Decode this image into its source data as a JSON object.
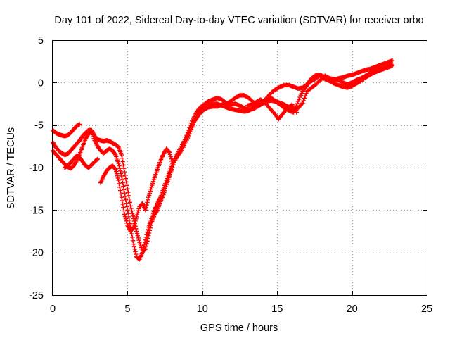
{
  "chart_data": {
    "type": "scatter",
    "title": "Day 101 of 2022, Sidereal Day-to-day VTEC variation (SDTVAR) for receiver orbo",
    "xlabel": "GPS time / hours",
    "ylabel": "SDTVAR / TECUs",
    "xlim": [
      0,
      25
    ],
    "ylim": [
      -25,
      5
    ],
    "xticks": [
      0,
      5,
      10,
      15,
      20,
      25
    ],
    "yticks": [
      5,
      0,
      -5,
      -10,
      -15,
      -20,
      -25
    ],
    "xtick_labels": [
      "0",
      "5",
      "10",
      "15",
      "20",
      "25"
    ],
    "ytick_labels": [
      "5",
      "0",
      "-5",
      "-10",
      "-15",
      "-20",
      "-25"
    ],
    "grid": true,
    "legend": "none",
    "marker": "+",
    "color": "#ff0000",
    "series": [
      {
        "x": [
          0.0,
          0.2,
          0.4,
          0.6,
          0.8,
          1.0,
          1.2,
          1.4,
          1.6,
          1.8,
          2.0,
          2.2,
          2.4,
          2.6,
          2.8,
          3.0,
          3.2,
          3.4,
          3.6,
          3.8,
          4.0,
          4.2,
          4.4,
          4.6,
          4.8,
          5.0,
          5.2,
          5.4,
          5.6,
          5.8,
          6.0,
          6.2,
          6.4,
          6.6,
          6.8,
          7.0,
          7.2,
          7.4,
          7.6,
          7.8,
          8.0,
          8.3,
          8.6,
          8.9,
          9.2,
          9.5,
          9.8,
          10.1,
          10.4,
          10.7,
          11.0,
          11.3,
          11.6,
          11.9,
          12.2,
          12.5,
          12.8,
          13.1,
          13.4,
          13.7,
          14.0,
          14.3,
          14.6,
          14.9,
          15.2,
          15.5,
          15.8,
          16.1,
          16.4,
          16.7,
          17.0,
          17.3,
          17.6,
          17.9,
          18.2,
          18.5,
          18.8,
          19.1,
          19.4,
          19.7,
          20.0,
          20.3,
          20.6,
          20.9,
          21.2,
          21.5,
          21.8,
          22.1,
          22.4,
          22.7
        ],
        "y": [
          -7.0,
          -7.6,
          -8.0,
          -8.3,
          -8.5,
          -8.4,
          -8.0,
          -7.6,
          -7.2,
          -6.8,
          -6.3,
          -5.9,
          -5.6,
          -5.6,
          -6.3,
          -6.7,
          -6.8,
          -6.9,
          -6.8,
          -6.9,
          -7.1,
          -7.3,
          -7.6,
          -8.5,
          -10.5,
          -12.5,
          -14.5,
          -16.0,
          -17.5,
          -18.8,
          -19.8,
          -19.6,
          -18.0,
          -16.5,
          -15.6,
          -15.0,
          -14.0,
          -13.2,
          -12.0,
          -11.0,
          -10.0,
          -8.5,
          -7.5,
          -6.5,
          -5.0,
          -3.8,
          -3.0,
          -2.6,
          -2.2,
          -2.0,
          -1.8,
          -2.0,
          -2.4,
          -2.6,
          -2.5,
          -2.7,
          -3.0,
          -3.2,
          -3.1,
          -2.8,
          -2.5,
          -2.2,
          -2.1,
          -2.2,
          -2.4,
          -2.6,
          -2.9,
          -3.2,
          -3.0,
          -2.4,
          -1.0,
          -0.6,
          -0.2,
          0.3,
          0.8,
          0.5,
          0.4,
          0.3,
          0.0,
          -0.2,
          0.0,
          0.3,
          0.5,
          0.8,
          1.1,
          1.3,
          1.5,
          1.7,
          1.9,
          2.1
        ]
      },
      {
        "x": [
          0.0,
          0.2,
          0.4,
          0.6,
          0.8,
          1.0,
          1.2,
          1.4,
          1.6,
          1.8,
          2.0,
          2.2,
          2.4,
          2.6,
          2.8,
          3.0,
          3.2,
          3.4,
          3.6,
          3.8,
          4.0,
          4.2,
          4.4,
          4.6,
          4.8,
          5.0,
          5.2,
          5.4,
          5.6,
          5.8,
          6.0,
          6.2,
          6.4,
          6.6,
          6.8,
          7.0,
          7.2,
          7.4,
          7.6,
          7.8,
          8.0,
          8.3,
          8.6,
          8.9,
          9.2,
          9.5,
          9.8,
          10.1,
          10.4,
          10.7,
          11.0,
          11.3,
          11.6,
          11.9,
          12.2,
          12.5,
          12.8,
          13.1,
          13.4,
          13.7,
          14.0,
          14.3,
          14.6,
          14.9,
          15.2,
          15.5,
          15.8,
          16.1,
          16.4,
          16.7,
          17.0,
          17.3,
          17.6,
          17.9,
          18.2,
          18.5,
          18.8,
          19.1,
          19.4,
          19.7,
          20.0,
          20.3,
          20.6,
          20.9,
          21.2,
          21.5,
          21.8,
          22.1,
          22.4,
          22.7
        ],
        "y": [
          -8.0,
          -8.4,
          -8.8,
          -9.2,
          -9.6,
          -9.9,
          -10.1,
          -9.8,
          -9.2,
          -8.4,
          -7.5,
          -6.6,
          -6.0,
          -5.7,
          -6.8,
          -7.5,
          -8.0,
          -8.3,
          -8.0,
          -7.8,
          -8.0,
          -8.5,
          -9.5,
          -11.0,
          -13.0,
          -15.0,
          -17.0,
          -19.0,
          -20.5,
          -20.8,
          -20.0,
          -18.5,
          -17.0,
          -16.0,
          -15.0,
          -14.2,
          -13.5,
          -12.5,
          -11.5,
          -10.5,
          -9.5,
          -8.8,
          -8.0,
          -7.0,
          -5.8,
          -4.4,
          -3.4,
          -3.0,
          -2.7,
          -2.5,
          -2.5,
          -2.7,
          -2.9,
          -3.1,
          -3.2,
          -3.3,
          -3.4,
          -3.3,
          -3.0,
          -2.6,
          -2.3,
          -2.0,
          -1.8,
          -2.2,
          -2.6,
          -3.0,
          -3.3,
          -3.5,
          -2.2,
          -1.0,
          -0.3,
          0.2,
          0.5,
          0.9,
          0.6,
          0.2,
          -0.1,
          -0.3,
          -0.5,
          -0.6,
          -0.4,
          -0.1,
          0.2,
          0.6,
          0.9,
          1.2,
          1.4,
          1.6,
          1.8,
          2.0
        ]
      },
      {
        "x": [
          0.0,
          0.2,
          0.4,
          0.6,
          0.8,
          1.0,
          1.2,
          1.4,
          1.6,
          1.8,
          3.2,
          3.4,
          3.6,
          3.8,
          4.0,
          4.2,
          4.4,
          4.6,
          4.8,
          5.0,
          5.2,
          5.4,
          5.6,
          5.8,
          6.0,
          6.2,
          6.4,
          6.6,
          6.8,
          7.0,
          7.2,
          7.4,
          7.6,
          7.8,
          8.0,
          8.3,
          8.6,
          8.9,
          9.2,
          9.5,
          9.8,
          10.1,
          10.4,
          10.7,
          11.0,
          11.3,
          11.6,
          11.9,
          12.2,
          12.5,
          12.8,
          13.1,
          13.4,
          13.7,
          14.0,
          14.3,
          14.6,
          14.9,
          15.2,
          15.5,
          15.8,
          16.1,
          16.4,
          16.7,
          17.0,
          17.3,
          17.6,
          17.9,
          18.2,
          18.5,
          18.8,
          19.1,
          19.4,
          19.7,
          20.0,
          20.3,
          20.6,
          20.9,
          21.2,
          21.5,
          21.8,
          22.1,
          22.4,
          22.7
        ],
        "y": [
          -5.6,
          -5.9,
          -6.1,
          -6.2,
          -6.3,
          -6.2,
          -5.9,
          -5.5,
          -5.1,
          -4.9,
          -11.8,
          -11.0,
          -10.4,
          -10.0,
          -9.8,
          -10.2,
          -11.5,
          -13.5,
          -15.5,
          -16.8,
          -17.5,
          -17.0,
          -15.8,
          -14.6,
          -14.2,
          -15.0,
          -13.5,
          -12.3,
          -11.2,
          -10.2,
          -9.2,
          -8.4,
          -7.8,
          -8.2,
          -9.5,
          -8.5,
          -7.5,
          -6.5,
          -5.5,
          -4.5,
          -3.7,
          -3.2,
          -2.9,
          -2.8,
          -2.8,
          -2.6,
          -2.5,
          -2.2,
          -1.8,
          -1.5,
          -1.5,
          -1.8,
          -2.3,
          -2.6,
          -2.4,
          -1.8,
          -1.2,
          -0.8,
          -0.5,
          -0.3,
          -0.3,
          -0.5,
          -0.7,
          -0.6,
          -0.2,
          0.5,
          0.9,
          0.8,
          0.4,
          0.2,
          0.3,
          0.5,
          0.6,
          0.8,
          0.9,
          1.1,
          1.3,
          1.5,
          1.6,
          1.8,
          2.0,
          2.2,
          2.4,
          2.6
        ]
      },
      {
        "x": [
          0.8,
          1.0,
          1.2,
          1.4,
          1.6,
          1.8,
          2.0,
          2.2,
          2.4,
          2.6,
          2.8,
          3.0
        ],
        "y": [
          -10.0,
          -9.8,
          -9.4,
          -9.0,
          -8.6,
          -8.8,
          -9.3,
          -9.8,
          -10.0,
          -9.7,
          -9.3,
          -9.0
        ]
      },
      {
        "x": [
          13.0,
          13.3,
          13.6,
          13.9,
          14.2,
          14.5,
          14.8,
          15.1,
          15.4,
          15.7,
          16.0,
          16.3
        ],
        "y": [
          -2.7,
          -2.6,
          -2.3,
          -2.0,
          -2.4,
          -3.0,
          -3.6,
          -4.3,
          -3.6,
          -3.0,
          -2.6,
          -3.5
        ]
      }
    ]
  }
}
